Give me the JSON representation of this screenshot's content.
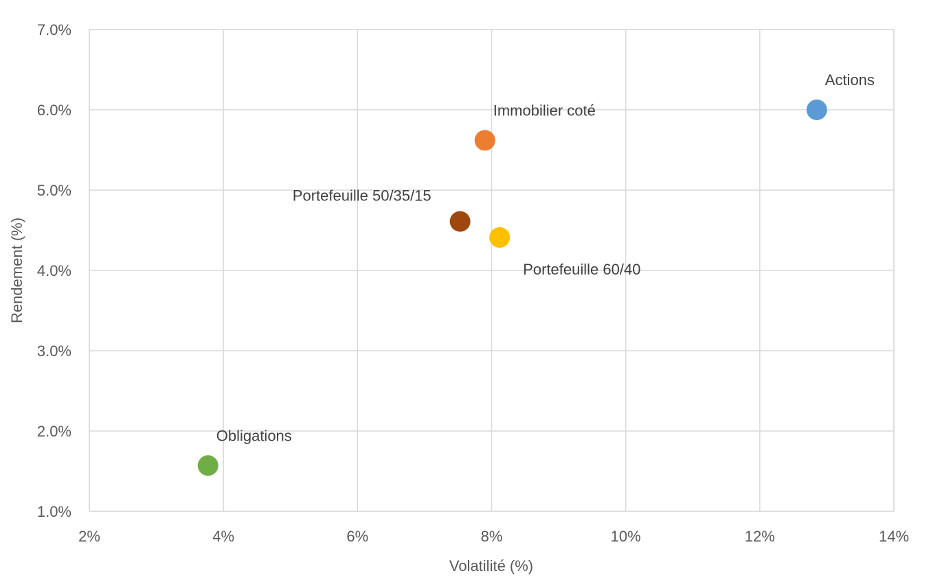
{
  "chart_data": {
    "type": "scatter",
    "title": "",
    "xlabel": "Volatilité (%)",
    "ylabel": "Rendement (%)",
    "xlim": [
      2,
      14
    ],
    "ylim": [
      1.0,
      7.0
    ],
    "x_ticks": [
      2,
      4,
      6,
      8,
      10,
      12,
      14
    ],
    "y_ticks": [
      1.0,
      2.0,
      3.0,
      4.0,
      5.0,
      6.0,
      7.0
    ],
    "x_tick_labels": [
      "2%",
      "4%",
      "6%",
      "8%",
      "10%",
      "12%",
      "14%"
    ],
    "y_tick_labels": [
      "1.0%",
      "2.0%",
      "3.0%",
      "4.0%",
      "5.0%",
      "6.0%",
      "7.0%"
    ],
    "grid": true,
    "legend": "none",
    "points": [
      {
        "label": "Actions",
        "x": 12.85,
        "y": 6.0,
        "color": "#5b9bd5",
        "label_position": "above-right"
      },
      {
        "label": "Immobilier coté",
        "x": 7.9,
        "y": 5.62,
        "color": "#ed7d31",
        "label_position": "above-right"
      },
      {
        "label": "Portefeuille 50/35/15",
        "x": 7.53,
        "y": 4.61,
        "color": "#9e480e",
        "label_position": "above-left"
      },
      {
        "label": "Portefeuille 60/40",
        "x": 8.12,
        "y": 4.41,
        "color": "#ffc000",
        "label_position": "below-right"
      },
      {
        "label": "Obligations",
        "x": 3.77,
        "y": 1.57,
        "color": "#70ad47",
        "label_position": "above-right"
      }
    ]
  }
}
